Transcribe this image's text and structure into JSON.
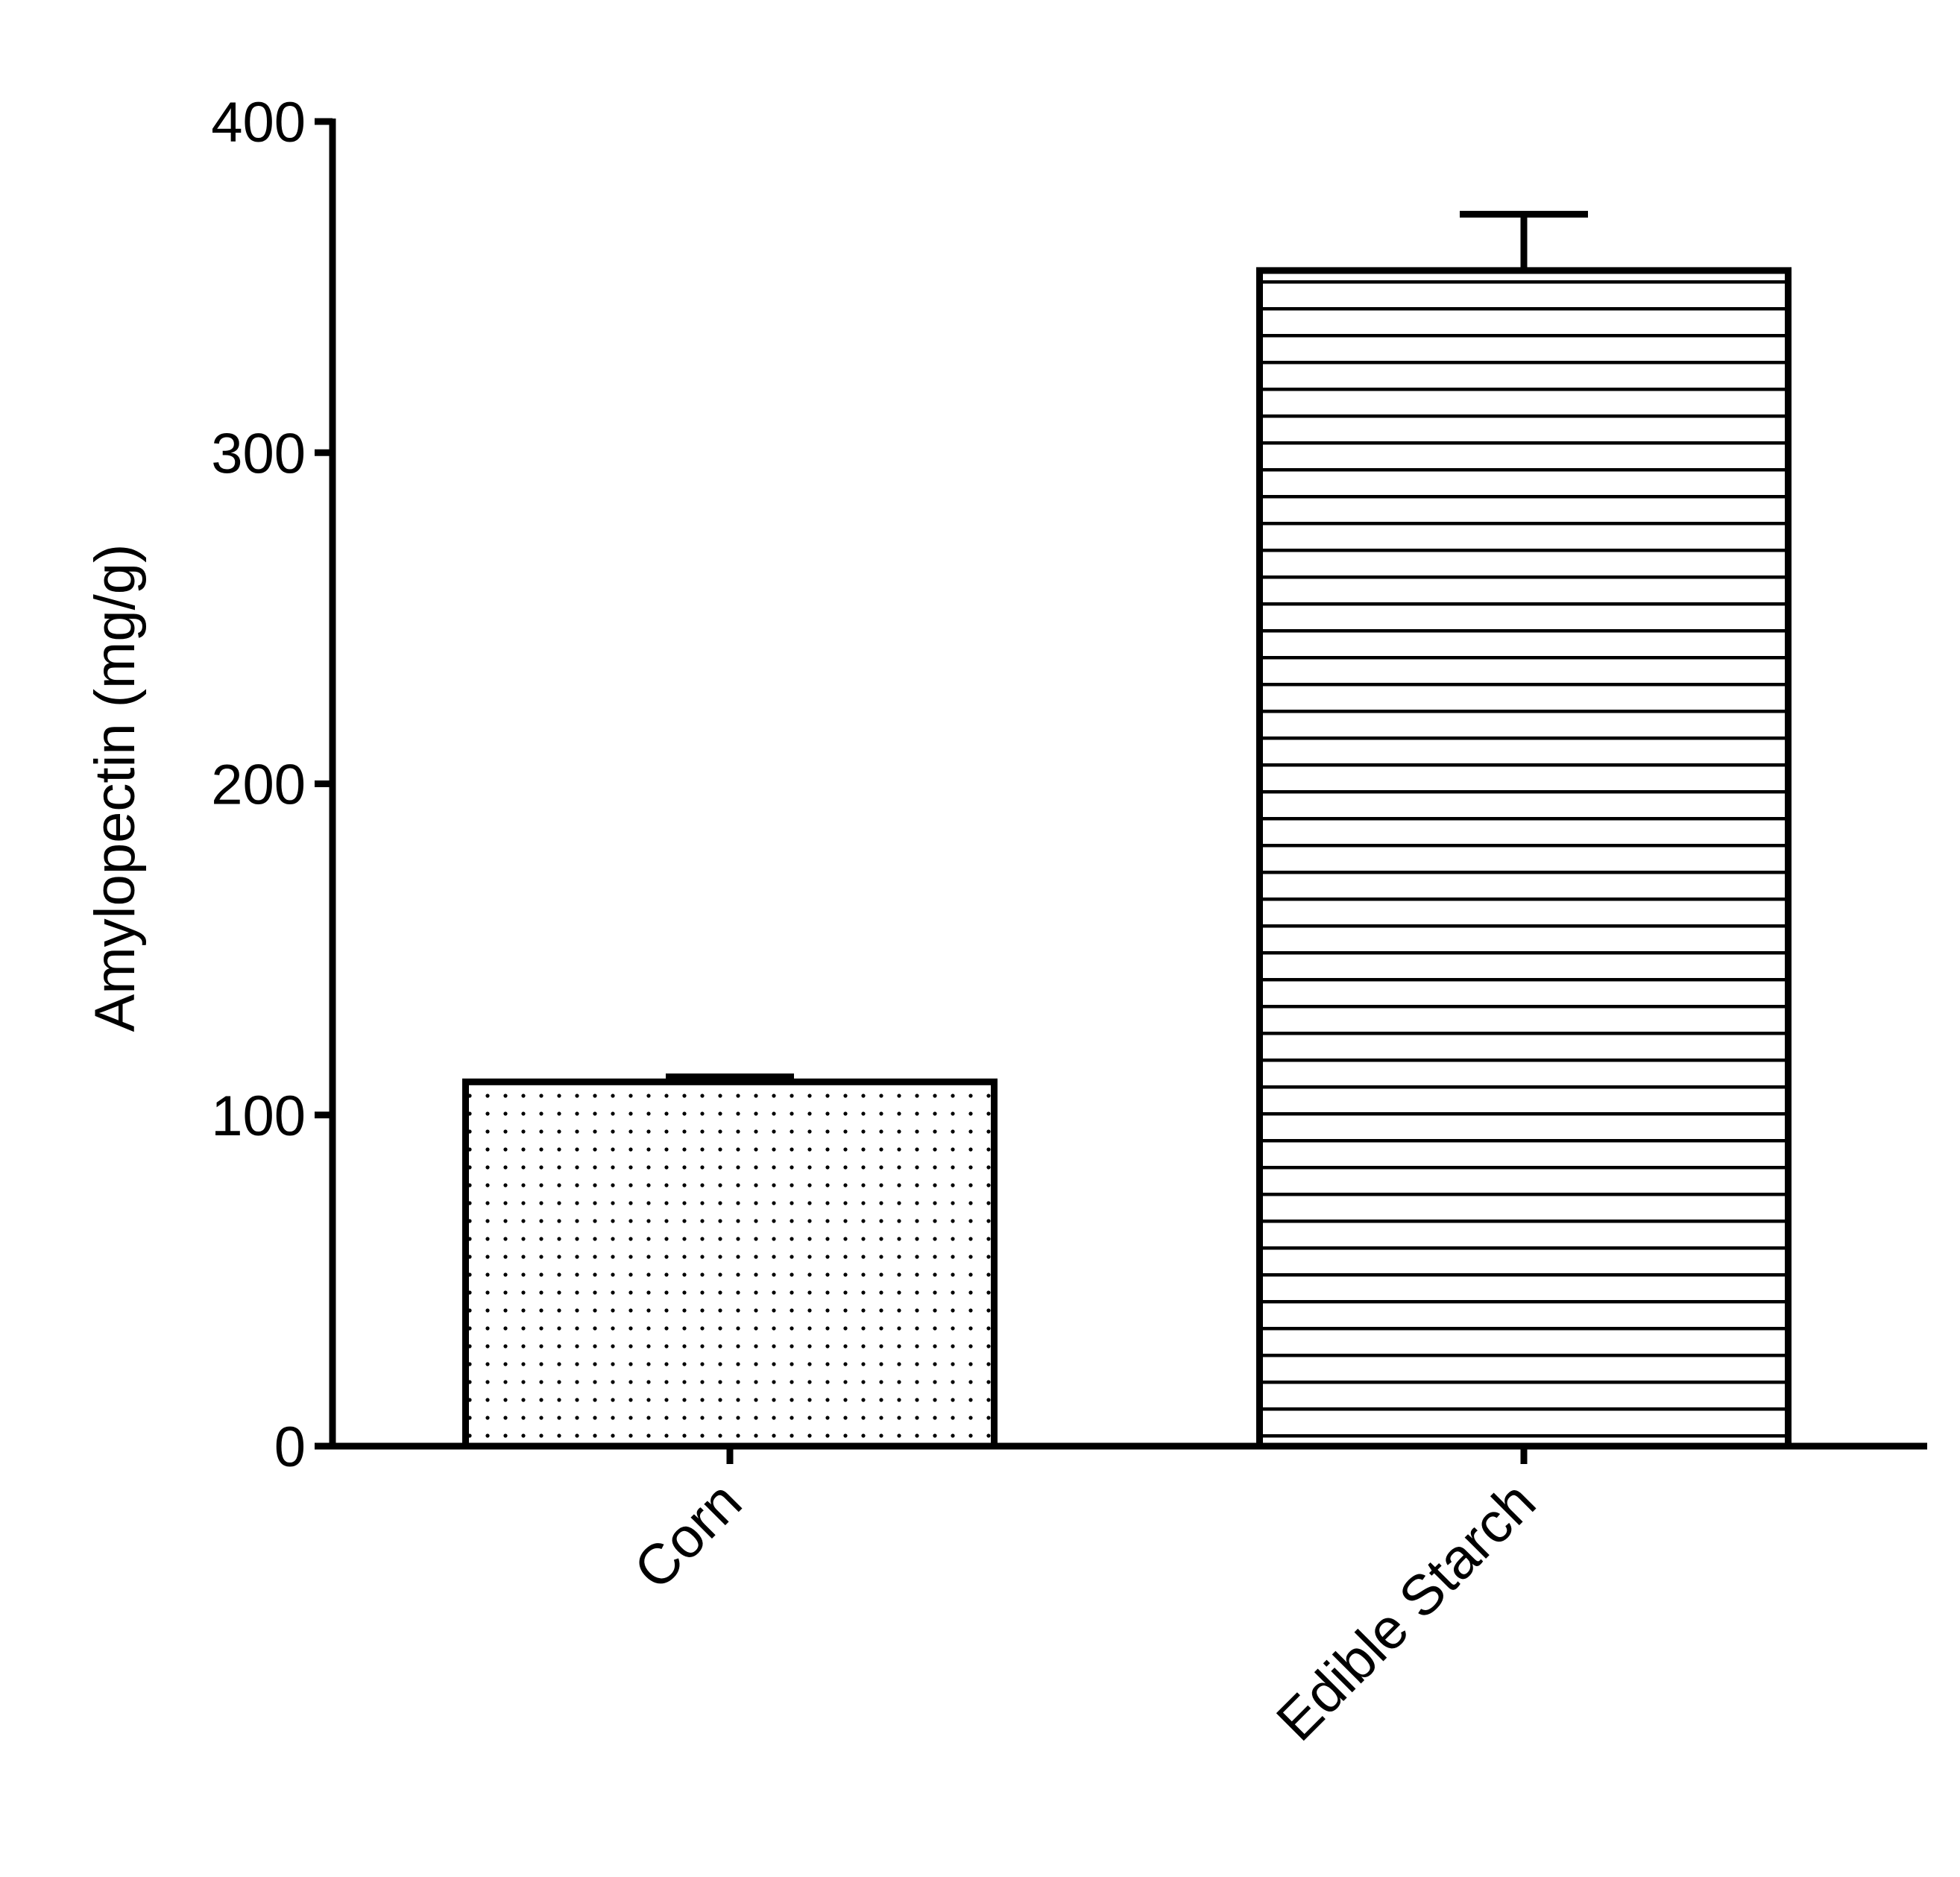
{
  "chart_data": {
    "type": "bar",
    "y_label": "Amylopectin (mg/g)",
    "categories": [
      "Corn",
      "Edible Starch"
    ],
    "values": [
      110,
      355
    ],
    "errors": [
      1.5,
      17
    ],
    "fill_patterns": [
      "dots",
      "horizontal-lines"
    ],
    "color": "#000000",
    "ylim": [
      0,
      400
    ],
    "yticks": [
      0,
      100,
      200,
      300,
      400
    ],
    "grid": false
  }
}
